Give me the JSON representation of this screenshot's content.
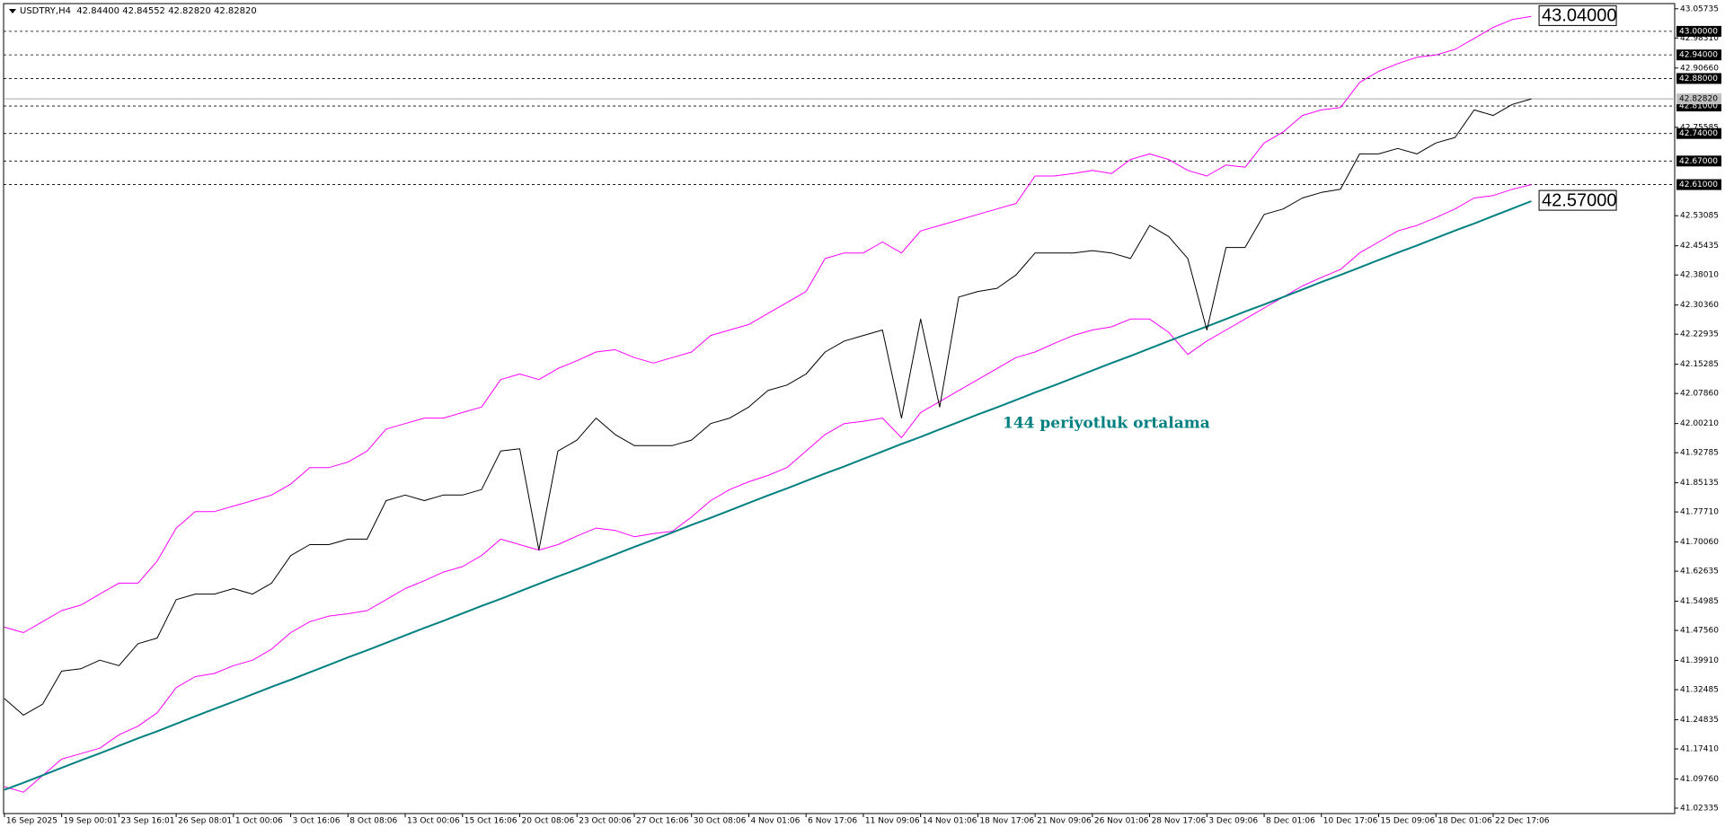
{
  "chart_data": {
    "type": "line",
    "title": "USDTRY,H4  42.84400 42.84552 42.82820 42.82820",
    "note": "144 periyotluk ortalama",
    "categories": [
      "16 Sep 2025",
      null,
      null,
      "19 Sep 00:01",
      null,
      null,
      "23 Sep 16:01",
      null,
      null,
      "26 Sep 08:01",
      null,
      null,
      "1 Oct 00:06",
      null,
      null,
      "3 Oct 16:06",
      null,
      null,
      "8 Oct 08:06",
      null,
      null,
      "13 Oct 00:06",
      null,
      null,
      "15 Oct 16:06",
      null,
      null,
      "20 Oct 08:06",
      null,
      null,
      "23 Oct 00:06",
      null,
      null,
      "27 Oct 16:06",
      null,
      null,
      "30 Oct 08:06",
      null,
      null,
      "4 Nov 01:06",
      null,
      null,
      "6 Nov 17:06",
      null,
      null,
      "11 Nov 09:06",
      null,
      null,
      "14 Nov 01:06",
      null,
      null,
      "18 Nov 17:06",
      null,
      null,
      "21 Nov 09:06",
      null,
      null,
      "26 Nov 01:06",
      null,
      null,
      "28 Nov 17:06",
      null,
      null,
      "3 Dec 09:06",
      null,
      null,
      "8 Dec 01:06",
      null,
      null,
      "10 Dec 17:06",
      null,
      null,
      "15 Dec 09:06",
      null,
      null,
      "18 Dec 01:06",
      null,
      null,
      "22 Dec 17:06",
      null,
      null
    ],
    "series": [
      {
        "color": "#ff00ff",
        "width": 1,
        "values": [
          41.484,
          41.47,
          41.498,
          41.526,
          41.54,
          41.568,
          41.596,
          41.596,
          41.652,
          41.736,
          41.778,
          41.778,
          41.792,
          41.806,
          41.82,
          41.848,
          41.89,
          41.89,
          41.904,
          41.932,
          41.988,
          42.002,
          42.016,
          42.016,
          42.03,
          42.044,
          42.114,
          42.128,
          42.114,
          42.142,
          42.162,
          42.184,
          42.19,
          42.17,
          42.156,
          42.17,
          42.184,
          42.226,
          42.24,
          42.254,
          42.282,
          42.31,
          42.338,
          42.422,
          42.436,
          42.436,
          42.464,
          42.436,
          42.492,
          42.506,
          42.52,
          42.534,
          42.548,
          42.562,
          42.632,
          42.632,
          42.638,
          42.646,
          42.638,
          42.674,
          42.688,
          42.674,
          42.646,
          42.632,
          42.66,
          42.654,
          42.716,
          42.744,
          42.786,
          42.8,
          42.806,
          42.87,
          42.898,
          42.918,
          42.934,
          42.94,
          42.954,
          42.982,
          43.01,
          43.03,
          43.038
        ]
      },
      {
        "color": "#ff00ff",
        "width": 1,
        "values": [
          41.078,
          41.064,
          41.106,
          41.148,
          41.162,
          41.176,
          41.21,
          41.232,
          41.266,
          41.33,
          41.358,
          41.366,
          41.386,
          41.4,
          41.428,
          41.47,
          41.498,
          41.512,
          41.518,
          41.526,
          41.554,
          41.582,
          41.602,
          41.624,
          41.638,
          41.666,
          41.708,
          41.694,
          41.68,
          41.694,
          41.716,
          41.736,
          41.73,
          41.714,
          41.722,
          41.728,
          41.764,
          41.806,
          41.834,
          41.854,
          41.87,
          41.89,
          41.932,
          41.974,
          42.002,
          42.008,
          42.016,
          41.966,
          42.03,
          42.058,
          42.086,
          42.114,
          42.142,
          42.17,
          42.184,
          42.206,
          42.226,
          42.24,
          42.248,
          42.268,
          42.268,
          42.234,
          42.178,
          42.212,
          42.24,
          42.268,
          42.296,
          42.324,
          42.352,
          42.374,
          42.394,
          42.436,
          42.464,
          42.492,
          42.506,
          42.526,
          42.548,
          42.576,
          42.582,
          42.598,
          42.61
        ]
      },
      {
        "color": "#008080",
        "width": 2,
        "values": [
          41.07,
          41.088,
          41.107,
          41.126,
          41.145,
          41.163,
          41.182,
          41.201,
          41.219,
          41.238,
          41.257,
          41.276,
          41.294,
          41.313,
          41.332,
          41.35,
          41.369,
          41.388,
          41.407,
          41.425,
          41.444,
          41.463,
          41.482,
          41.5,
          41.519,
          41.538,
          41.556,
          41.575,
          41.594,
          41.613,
          41.631,
          41.65,
          41.669,
          41.688,
          41.706,
          41.725,
          41.744,
          41.762,
          41.781,
          41.8,
          41.819,
          41.837,
          41.856,
          41.875,
          41.893,
          41.912,
          41.931,
          41.95,
          41.968,
          41.987,
          42.006,
          42.025,
          42.043,
          42.062,
          42.081,
          42.099,
          42.118,
          42.137,
          42.156,
          42.174,
          42.193,
          42.212,
          42.231,
          42.249,
          42.268,
          42.287,
          42.305,
          42.324,
          42.343,
          42.362,
          42.38,
          42.399,
          42.418,
          42.437,
          42.455,
          42.474,
          42.493,
          42.511,
          42.53,
          42.549,
          42.568
        ]
      },
      {
        "color": "#000000",
        "width": 1,
        "values": [
          41.302,
          41.26,
          41.288,
          41.372,
          41.378,
          41.4,
          41.386,
          41.442,
          41.456,
          41.554,
          41.568,
          41.568,
          41.582,
          41.568,
          41.596,
          41.666,
          41.694,
          41.694,
          41.708,
          41.708,
          41.806,
          41.82,
          41.806,
          41.82,
          41.82,
          41.834,
          41.932,
          41.938,
          41.68,
          41.932,
          41.96,
          42.016,
          41.974,
          41.946,
          41.946,
          41.946,
          41.96,
          42.002,
          42.016,
          42.044,
          42.086,
          42.1,
          42.128,
          42.184,
          42.212,
          42.226,
          42.24,
          42.016,
          42.268,
          42.044,
          42.324,
          42.338,
          42.346,
          42.38,
          42.436,
          42.436,
          42.436,
          42.442,
          42.436,
          42.422,
          42.506,
          42.478,
          42.422,
          42.24,
          42.45,
          42.45,
          42.534,
          42.548,
          42.576,
          42.59,
          42.598,
          42.688,
          42.688,
          42.702,
          42.688,
          42.716,
          42.73,
          42.8,
          42.786,
          42.814,
          42.8282
        ]
      }
    ],
    "ylim": [
      41.02335,
      43.05735
    ],
    "yticks": [
      {
        "value": 43.05735,
        "label": "43.05735"
      },
      {
        "value": 42.9831,
        "label": "42.98310"
      },
      {
        "value": 42.9066,
        "label": "42.90660"
      },
      {
        "value": 42.75585,
        "label": "42.75585"
      },
      {
        "value": 42.53085,
        "label": "42.53085"
      },
      {
        "value": 42.45435,
        "label": "42.45435"
      },
      {
        "value": 42.3801,
        "label": "42.38010"
      },
      {
        "value": 42.3036,
        "label": "42.30360"
      },
      {
        "value": 42.22935,
        "label": "42.22935"
      },
      {
        "value": 42.15285,
        "label": "42.15285"
      },
      {
        "value": 42.0786,
        "label": "42.07860"
      },
      {
        "value": 42.0021,
        "label": "42.00210"
      },
      {
        "value": 41.92785,
        "label": "41.92785"
      },
      {
        "value": 41.85135,
        "label": "41.85135"
      },
      {
        "value": 41.7771,
        "label": "41.77710"
      },
      {
        "value": 41.7006,
        "label": "41.70060"
      },
      {
        "value": 41.62635,
        "label": "41.62635"
      },
      {
        "value": 41.54985,
        "label": "41.54985"
      },
      {
        "value": 41.4756,
        "label": "41.47560"
      },
      {
        "value": 41.3991,
        "label": "41.39910"
      },
      {
        "value": 41.32485,
        "label": "41.32485"
      },
      {
        "value": 41.24835,
        "label": "41.24835"
      },
      {
        "value": 41.1741,
        "label": "41.17410"
      },
      {
        "value": 41.0976,
        "label": "41.09760"
      },
      {
        "value": 41.02335,
        "label": "41.02335"
      }
    ],
    "levels": [
      {
        "value": 43,
        "label": "43.00000"
      },
      {
        "value": 42.94,
        "label": "42.94000"
      },
      {
        "value": 42.88,
        "label": "42.88000"
      },
      {
        "value": 42.81,
        "label": "42.81000"
      },
      {
        "value": 42.74,
        "label": "42.74000"
      },
      {
        "value": 42.67,
        "label": "42.67000"
      },
      {
        "value": 42.61,
        "label": "42.61000"
      }
    ],
    "current": {
      "value": 42.8282,
      "label": "42.82820"
    },
    "annotations": [
      {
        "value": 43.04,
        "label": "43.04000"
      },
      {
        "value": 42.57,
        "label": "42.57000"
      }
    ]
  }
}
